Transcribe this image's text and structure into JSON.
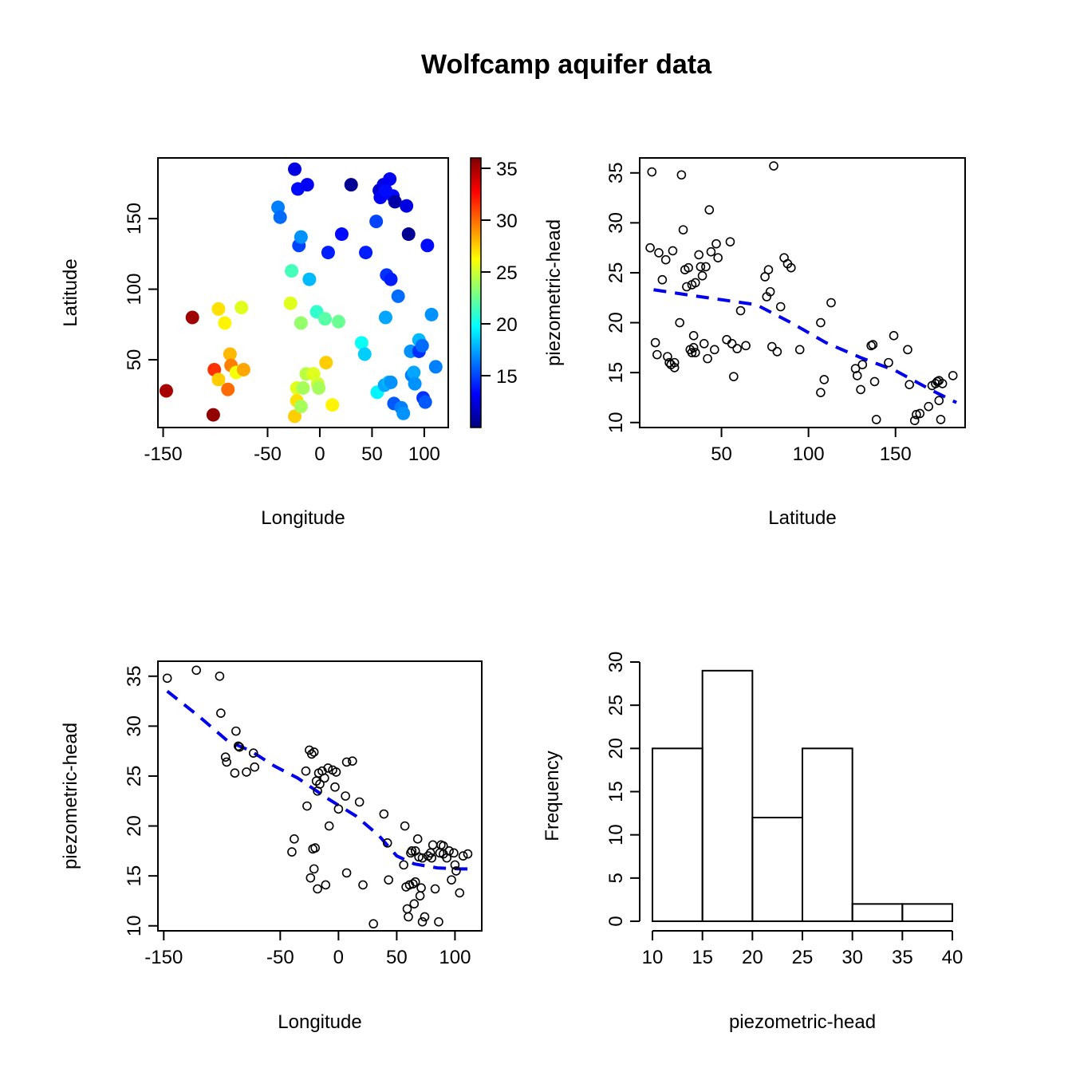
{
  "title": "Wolfcamp aquifer data",
  "colors": {
    "trend": "#0000ee",
    "points": "#000000",
    "palette": [
      "#00007F",
      "#0000FF",
      "#007FFF",
      "#00FFFF",
      "#7FFF7F",
      "#FFFF00",
      "#FF7F00",
      "#FF0000",
      "#7F0000"
    ]
  },
  "chart_data": [
    {
      "id": "map",
      "type": "scatter",
      "xlabel": "Longitude",
      "ylabel": "Latitude",
      "colorbar_label": "piezometric-head",
      "xlim": [
        -155,
        123
      ],
      "ylim": [
        2,
        193
      ],
      "xticks": [
        -150,
        -50,
        0,
        50,
        100
      ],
      "yticks": [
        50,
        100,
        150
      ],
      "color_range": [
        10,
        36
      ],
      "colorbar_ticks": [
        15,
        20,
        25,
        30,
        35
      ],
      "points": [
        [
          -147,
          28,
          35.0
        ],
        [
          -122,
          80,
          35.2
        ],
        [
          -102,
          11,
          35.5
        ],
        [
          -101,
          43,
          31.5
        ],
        [
          -97,
          36,
          27.5
        ],
        [
          -97,
          86,
          27.0
        ],
        [
          -91,
          76,
          26.5
        ],
        [
          -88,
          29,
          30.0
        ],
        [
          -86,
          54,
          28.0
        ],
        [
          -85,
          46,
          29.5
        ],
        [
          -80,
          41,
          26.0
        ],
        [
          -75,
          87,
          25.5
        ],
        [
          -73,
          43,
          28.5
        ],
        [
          -40,
          158,
          16.5
        ],
        [
          -38,
          151,
          16.0
        ],
        [
          -28,
          90,
          25.5
        ],
        [
          -27,
          113,
          21.5
        ],
        [
          -24,
          10,
          27.5
        ],
        [
          -24,
          185,
          12.5
        ],
        [
          -22,
          30,
          25.5
        ],
        [
          -22,
          21,
          27.0
        ],
        [
          -21,
          171,
          13.5
        ],
        [
          -20,
          131,
          15.0
        ],
        [
          -18,
          137,
          17.0
        ],
        [
          -18,
          76,
          23.5
        ],
        [
          -18,
          17,
          24.0
        ],
        [
          -16,
          30,
          24.0
        ],
        [
          -13,
          40,
          24.5
        ],
        [
          -12,
          174,
          13.0
        ],
        [
          -10,
          107,
          18.0
        ],
        [
          -6,
          40,
          25.5
        ],
        [
          -3,
          84,
          21.0
        ],
        [
          -2,
          33,
          25.0
        ],
        [
          -1,
          30,
          24.0
        ],
        [
          5,
          79,
          22.0
        ],
        [
          6,
          48,
          27.5
        ],
        [
          8,
          126,
          14.0
        ],
        [
          12,
          18,
          26.5
        ],
        [
          18,
          77,
          22.5
        ],
        [
          21,
          139,
          13.5
        ],
        [
          30,
          174,
          10.5
        ],
        [
          40,
          62,
          20.0
        ],
        [
          43,
          54,
          18.5
        ],
        [
          44,
          126,
          14.0
        ],
        [
          54,
          148,
          15.0
        ],
        [
          55,
          27,
          19.5
        ],
        [
          57,
          170,
          12.0
        ],
        [
          58,
          165,
          13.0
        ],
        [
          61,
          174,
          12.5
        ],
        [
          62,
          32,
          17.5
        ],
        [
          63,
          80,
          17.5
        ],
        [
          63,
          170,
          13.5
        ],
        [
          64,
          110,
          14.5
        ],
        [
          66,
          34,
          18.0
        ],
        [
          67,
          178,
          13.0
        ],
        [
          68,
          107,
          14.0
        ],
        [
          68,
          34,
          17.0
        ],
        [
          70,
          166,
          13.5
        ],
        [
          71,
          19,
          15.5
        ],
        [
          72,
          162,
          11.0
        ],
        [
          75,
          95,
          16.0
        ],
        [
          78,
          16,
          16.5
        ],
        [
          80,
          12,
          17.0
        ],
        [
          83,
          159,
          12.5
        ],
        [
          85,
          139,
          10.5
        ],
        [
          87,
          56,
          17.0
        ],
        [
          88,
          39,
          16.5
        ],
        [
          90,
          41,
          17.5
        ],
        [
          91,
          33,
          17.0
        ],
        [
          95,
          64,
          18.0
        ],
        [
          95,
          56,
          14.5
        ],
        [
          98,
          60,
          16.0
        ],
        [
          99,
          23,
          14.5
        ],
        [
          101,
          20,
          15.5
        ],
        [
          103,
          131,
          13.5
        ],
        [
          107,
          82,
          17.0
        ],
        [
          111,
          45,
          16.5
        ]
      ]
    },
    {
      "id": "lat-vs-head",
      "type": "scatter",
      "xlabel": "Latitude",
      "ylabel": "",
      "xlim": [
        3,
        190
      ],
      "ylim": [
        9.5,
        36.5
      ],
      "xticks": [
        50,
        100,
        150
      ],
      "yticks": [
        10,
        15,
        20,
        25,
        30,
        35
      ],
      "trend": [
        [
          11,
          23.3
        ],
        [
          30,
          22.8
        ],
        [
          50,
          22.3
        ],
        [
          70,
          21.8
        ],
        [
          90,
          20.0
        ],
        [
          110,
          18.0
        ],
        [
          130,
          16.5
        ],
        [
          150,
          15.2
        ],
        [
          170,
          13.3
        ],
        [
          185,
          12.0
        ]
      ],
      "points": [
        [
          9,
          27.5
        ],
        [
          10,
          35.1
        ],
        [
          12,
          18.0
        ],
        [
          13,
          16.8
        ],
        [
          14,
          27.0
        ],
        [
          16,
          24.3
        ],
        [
          18,
          26.3
        ],
        [
          19,
          16.6
        ],
        [
          20,
          16.0
        ],
        [
          21,
          15.8
        ],
        [
          22,
          27.2
        ],
        [
          23,
          15.5
        ],
        [
          23,
          16.0
        ],
        [
          26,
          20.0
        ],
        [
          27,
          34.8
        ],
        [
          28,
          29.3
        ],
        [
          29,
          25.3
        ],
        [
          30,
          23.6
        ],
        [
          31,
          25.5
        ],
        [
          32,
          17.3
        ],
        [
          33,
          17.0
        ],
        [
          33,
          23.8
        ],
        [
          34,
          17.5
        ],
        [
          34,
          18.7
        ],
        [
          35,
          24.0
        ],
        [
          35,
          17.0
        ],
        [
          37,
          26.8
        ],
        [
          38,
          25.6
        ],
        [
          39,
          24.7
        ],
        [
          40,
          17.9
        ],
        [
          41,
          25.6
        ],
        [
          42,
          16.4
        ],
        [
          43,
          31.3
        ],
        [
          44,
          27.1
        ],
        [
          46,
          17.3
        ],
        [
          47,
          27.9
        ],
        [
          48,
          26.5
        ],
        [
          53,
          18.3
        ],
        [
          55,
          28.1
        ],
        [
          56,
          17.9
        ],
        [
          57,
          14.6
        ],
        [
          59,
          17.4
        ],
        [
          61,
          21.2
        ],
        [
          64,
          17.7
        ],
        [
          75,
          24.6
        ],
        [
          76,
          22.6
        ],
        [
          77,
          25.3
        ],
        [
          78,
          23.1
        ],
        [
          79,
          17.6
        ],
        [
          80,
          35.7
        ],
        [
          82,
          17.1
        ],
        [
          84,
          21.6
        ],
        [
          86,
          26.5
        ],
        [
          88,
          25.9
        ],
        [
          90,
          25.5
        ],
        [
          95,
          17.3
        ],
        [
          107,
          20.0
        ],
        [
          107,
          13.0
        ],
        [
          109,
          14.3
        ],
        [
          113,
          22.0
        ],
        [
          127,
          15.4
        ],
        [
          128,
          14.7
        ],
        [
          130,
          13.3
        ],
        [
          131,
          15.8
        ],
        [
          136,
          17.7
        ],
        [
          137,
          17.8
        ],
        [
          138,
          14.1
        ],
        [
          139,
          10.3
        ],
        [
          146,
          16.0
        ],
        [
          149,
          18.7
        ],
        [
          157,
          17.3
        ],
        [
          158,
          13.8
        ],
        [
          161,
          10.2
        ],
        [
          162,
          10.8
        ],
        [
          164,
          10.9
        ],
        [
          169,
          11.6
        ],
        [
          171,
          13.7
        ],
        [
          173,
          13.9
        ],
        [
          174,
          14.1
        ],
        [
          175,
          14.2
        ],
        [
          175,
          12.2
        ],
        [
          176,
          10.3
        ],
        [
          177,
          13.9
        ],
        [
          183,
          14.7
        ]
      ]
    },
    {
      "id": "lon-vs-head",
      "type": "scatter",
      "xlabel": "Longitude",
      "ylabel": "piezometric-head",
      "xlim": [
        -155,
        123
      ],
      "ylim": [
        9.5,
        36.5
      ],
      "xticks": [
        -150,
        -50,
        0,
        50,
        100
      ],
      "yticks": [
        10,
        15,
        20,
        25,
        30,
        35
      ],
      "trend": [
        [
          -147,
          33.5
        ],
        [
          -120,
          31.0
        ],
        [
          -95,
          28.5
        ],
        [
          -75,
          27.5
        ],
        [
          -55,
          26.0
        ],
        [
          -35,
          24.8
        ],
        [
          -10,
          22.8
        ],
        [
          15,
          21.0
        ],
        [
          35,
          19.0
        ],
        [
          50,
          17.0
        ],
        [
          65,
          16.2
        ],
        [
          85,
          15.8
        ],
        [
          105,
          15.7
        ],
        [
          112,
          15.7
        ]
      ],
      "points": [
        [
          -147,
          34.8
        ],
        [
          -122,
          35.6
        ],
        [
          -102,
          35.0
        ],
        [
          -101,
          31.3
        ],
        [
          -97,
          26.9
        ],
        [
          -96,
          26.4
        ],
        [
          -89,
          25.3
        ],
        [
          -88,
          29.5
        ],
        [
          -86,
          28.0
        ],
        [
          -85,
          27.9
        ],
        [
          -79,
          25.4
        ],
        [
          -73,
          27.3
        ],
        [
          -72,
          25.9
        ],
        [
          -40,
          17.4
        ],
        [
          -38,
          18.7
        ],
        [
          -28,
          25.5
        ],
        [
          -27,
          22.0
        ],
        [
          -25,
          27.6
        ],
        [
          -24,
          14.8
        ],
        [
          -23,
          27.2
        ],
        [
          -22,
          17.7
        ],
        [
          -21,
          27.4
        ],
        [
          -21,
          15.7
        ],
        [
          -20,
          17.8
        ],
        [
          -19,
          24.5
        ],
        [
          -18,
          23.5
        ],
        [
          -18,
          13.7
        ],
        [
          -17,
          25.3
        ],
        [
          -16,
          24.2
        ],
        [
          -14,
          25.5
        ],
        [
          -12,
          24.8
        ],
        [
          -11,
          14.1
        ],
        [
          -9,
          25.8
        ],
        [
          -8,
          20.0
        ],
        [
          -5,
          25.6
        ],
        [
          -3,
          23.9
        ],
        [
          -2,
          25.4
        ],
        [
          0,
          21.7
        ],
        [
          6,
          23.0
        ],
        [
          7,
          26.4
        ],
        [
          7,
          15.3
        ],
        [
          12,
          26.5
        ],
        [
          18,
          22.4
        ],
        [
          21,
          14.1
        ],
        [
          30,
          10.2
        ],
        [
          39,
          21.2
        ],
        [
          42,
          18.3
        ],
        [
          43,
          14.6
        ],
        [
          56,
          16.1
        ],
        [
          57,
          20.0
        ],
        [
          58,
          13.9
        ],
        [
          59,
          11.7
        ],
        [
          60,
          10.9
        ],
        [
          61,
          14.1
        ],
        [
          62,
          17.3
        ],
        [
          63,
          17.5
        ],
        [
          64,
          14.2
        ],
        [
          65,
          12.2
        ],
        [
          66,
          14.4
        ],
        [
          66,
          17.5
        ],
        [
          68,
          18.7
        ],
        [
          69,
          16.9
        ],
        [
          70,
          13.0
        ],
        [
          71,
          13.8
        ],
        [
          72,
          10.4
        ],
        [
          72,
          16.8
        ],
        [
          74,
          10.9
        ],
        [
          77,
          17.0
        ],
        [
          79,
          17.3
        ],
        [
          80,
          16.8
        ],
        [
          81,
          18.1
        ],
        [
          83,
          13.7
        ],
        [
          86,
          10.4
        ],
        [
          87,
          17.3
        ],
        [
          88,
          18.1
        ],
        [
          90,
          18.0
        ],
        [
          90,
          17.2
        ],
        [
          93,
          16.8
        ],
        [
          95,
          17.5
        ],
        [
          97,
          14.6
        ],
        [
          99,
          17.3
        ],
        [
          100,
          16.1
        ],
        [
          101,
          15.5
        ],
        [
          104,
          13.3
        ],
        [
          107,
          17.0
        ],
        [
          111,
          17.2
        ]
      ]
    },
    {
      "id": "histogram",
      "type": "bar",
      "xlabel": "piezometric-head",
      "ylabel": "Frequency",
      "xlim": [
        10,
        40
      ],
      "ylim": [
        0,
        30
      ],
      "xticks": [
        10,
        15,
        20,
        25,
        30,
        35,
        40
      ],
      "yticks": [
        0,
        5,
        10,
        15,
        20,
        25,
        30
      ],
      "bin_edges": [
        10,
        15,
        20,
        25,
        30,
        35,
        40
      ],
      "values": [
        20,
        29,
        12,
        20,
        2,
        2
      ]
    }
  ]
}
